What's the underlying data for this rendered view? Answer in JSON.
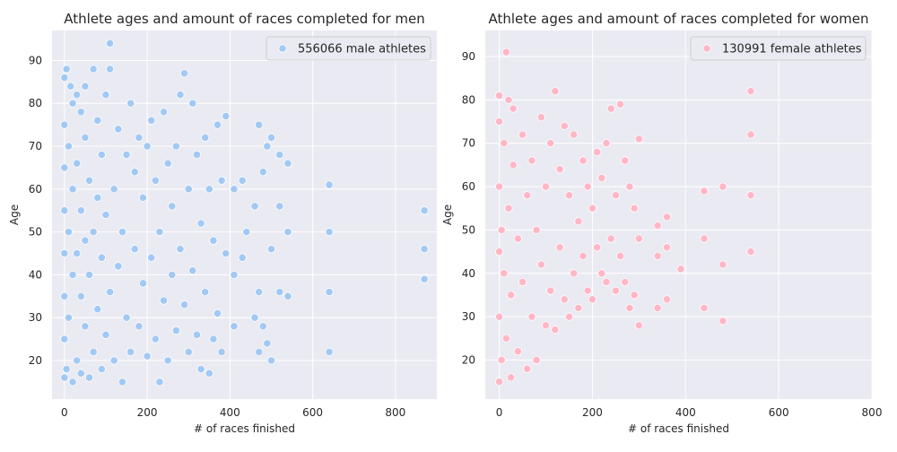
{
  "chart_data": [
    {
      "type": "scatter",
      "title": "Athlete ages and amount of races completed for men",
      "xlabel": "# of races finished",
      "ylabel": "Age",
      "xlim": [
        -30,
        900
      ],
      "ylim": [
        11,
        97
      ],
      "xticks": [
        0,
        200,
        400,
        600,
        800
      ],
      "yticks": [
        20,
        30,
        40,
        50,
        60,
        70,
        80,
        90
      ],
      "grid": true,
      "legend_position": "top-right",
      "color": "#a1c9f4",
      "series": [
        {
          "name": "556066 male athletes",
          "points": [
            [
              0,
              16
            ],
            [
              0,
              25
            ],
            [
              0,
              35
            ],
            [
              0,
              45
            ],
            [
              0,
              55
            ],
            [
              0,
              65
            ],
            [
              0,
              75
            ],
            [
              0,
              86
            ],
            [
              5,
              18
            ],
            [
              5,
              88
            ],
            [
              10,
              30
            ],
            [
              10,
              50
            ],
            [
              10,
              70
            ],
            [
              15,
              84
            ],
            [
              20,
              15
            ],
            [
              20,
              40
            ],
            [
              20,
              60
            ],
            [
              20,
              80
            ],
            [
              30,
              20
            ],
            [
              30,
              45
            ],
            [
              30,
              66
            ],
            [
              30,
              82
            ],
            [
              40,
              17
            ],
            [
              40,
              35
            ],
            [
              40,
              55
            ],
            [
              40,
              78
            ],
            [
              50,
              28
            ],
            [
              50,
              48
            ],
            [
              50,
              72
            ],
            [
              50,
              84
            ],
            [
              60,
              16
            ],
            [
              60,
              40
            ],
            [
              60,
              62
            ],
            [
              70,
              22
            ],
            [
              70,
              50
            ],
            [
              70,
              88
            ],
            [
              80,
              32
            ],
            [
              80,
              58
            ],
            [
              80,
              76
            ],
            [
              90,
              18
            ],
            [
              90,
              44
            ],
            [
              90,
              68
            ],
            [
              100,
              26
            ],
            [
              100,
              54
            ],
            [
              100,
              82
            ],
            [
              110,
              94
            ],
            [
              110,
              36
            ],
            [
              110,
              88
            ],
            [
              120,
              20
            ],
            [
              120,
              60
            ],
            [
              130,
              42
            ],
            [
              130,
              74
            ],
            [
              140,
              15
            ],
            [
              140,
              50
            ],
            [
              150,
              30
            ],
            [
              150,
              68
            ],
            [
              160,
              22
            ],
            [
              160,
              80
            ],
            [
              170,
              46
            ],
            [
              170,
              64
            ],
            [
              180,
              28
            ],
            [
              180,
              72
            ],
            [
              190,
              38
            ],
            [
              190,
              58
            ],
            [
              200,
              21
            ],
            [
              200,
              70
            ],
            [
              210,
              44
            ],
            [
              210,
              76
            ],
            [
              220,
              25
            ],
            [
              220,
              62
            ],
            [
              230,
              15
            ],
            [
              230,
              50
            ],
            [
              240,
              34
            ],
            [
              240,
              78
            ],
            [
              250,
              20
            ],
            [
              250,
              66
            ],
            [
              260,
              40
            ],
            [
              260,
              56
            ],
            [
              270,
              27
            ],
            [
              270,
              70
            ],
            [
              280,
              46
            ],
            [
              280,
              82
            ],
            [
              290,
              87
            ],
            [
              290,
              33
            ],
            [
              300,
              22
            ],
            [
              300,
              60
            ],
            [
              310,
              41
            ],
            [
              310,
              80
            ],
            [
              320,
              26
            ],
            [
              320,
              68
            ],
            [
              330,
              18
            ],
            [
              330,
              52
            ],
            [
              340,
              36
            ],
            [
              340,
              72
            ],
            [
              350,
              17
            ],
            [
              350,
              60
            ],
            [
              360,
              25
            ],
            [
              360,
              48
            ],
            [
              370,
              31
            ],
            [
              370,
              75
            ],
            [
              380,
              22
            ],
            [
              380,
              62
            ],
            [
              390,
              77
            ],
            [
              390,
              45
            ],
            [
              410,
              28
            ],
            [
              410,
              40
            ],
            [
              410,
              60
            ],
            [
              430,
              44
            ],
            [
              430,
              62
            ],
            [
              440,
              50
            ],
            [
              460,
              30
            ],
            [
              460,
              56
            ],
            [
              470,
              22
            ],
            [
              470,
              36
            ],
            [
              470,
              75
            ],
            [
              480,
              28
            ],
            [
              480,
              64
            ],
            [
              490,
              24
            ],
            [
              490,
              70
            ],
            [
              500,
              20
            ],
            [
              500,
              46
            ],
            [
              500,
              72
            ],
            [
              520,
              36
            ],
            [
              520,
              56
            ],
            [
              520,
              68
            ],
            [
              540,
              35
            ],
            [
              540,
              50
            ],
            [
              540,
              66
            ],
            [
              640,
              22
            ],
            [
              640,
              36
            ],
            [
              640,
              50
            ],
            [
              640,
              61
            ],
            [
              870,
              39
            ],
            [
              870,
              46
            ],
            [
              870,
              55
            ]
          ]
        }
      ]
    },
    {
      "type": "scatter",
      "title": "Athlete ages and amount of races completed for women",
      "xlabel": "# of races finished",
      "ylabel": "Age",
      "xlim": [
        -30,
        800
      ],
      "ylim": [
        11,
        96
      ],
      "xticks": [
        0,
        200,
        400,
        600,
        800
      ],
      "yticks": [
        20,
        30,
        40,
        50,
        60,
        70,
        80,
        90
      ],
      "grid": true,
      "legend_position": "top-right",
      "color": "#ffb7c5",
      "series": [
        {
          "name": "130991 female athletes",
          "points": [
            [
              0,
              15
            ],
            [
              0,
              30
            ],
            [
              0,
              45
            ],
            [
              0,
              60
            ],
            [
              0,
              75
            ],
            [
              0,
              81
            ],
            [
              5,
              20
            ],
            [
              5,
              50
            ],
            [
              10,
              40
            ],
            [
              10,
              70
            ],
            [
              15,
              91
            ],
            [
              15,
              25
            ],
            [
              20,
              55
            ],
            [
              20,
              80
            ],
            [
              25,
              16
            ],
            [
              25,
              35
            ],
            [
              30,
              65
            ],
            [
              30,
              78
            ],
            [
              40,
              22
            ],
            [
              40,
              48
            ],
            [
              50,
              38
            ],
            [
              50,
              72
            ],
            [
              60,
              18
            ],
            [
              60,
              58
            ],
            [
              70,
              30
            ],
            [
              70,
              66
            ],
            [
              80,
              20
            ],
            [
              80,
              50
            ],
            [
              90,
              42
            ],
            [
              90,
              76
            ],
            [
              100,
              28
            ],
            [
              100,
              60
            ],
            [
              110,
              36
            ],
            [
              110,
              70
            ],
            [
              120,
              27
            ],
            [
              120,
              82
            ],
            [
              130,
              46
            ],
            [
              130,
              64
            ],
            [
              140,
              34
            ],
            [
              140,
              74
            ],
            [
              150,
              30
            ],
            [
              150,
              58
            ],
            [
              160,
              40
            ],
            [
              160,
              72
            ],
            [
              170,
              32
            ],
            [
              170,
              52
            ],
            [
              180,
              44
            ],
            [
              180,
              66
            ],
            [
              190,
              36
            ],
            [
              190,
              60
            ],
            [
              200,
              34
            ],
            [
              200,
              55
            ],
            [
              210,
              46
            ],
            [
              210,
              68
            ],
            [
              220,
              40
            ],
            [
              220,
              62
            ],
            [
              230,
              38
            ],
            [
              230,
              70
            ],
            [
              240,
              48
            ],
            [
              240,
              78
            ],
            [
              250,
              36
            ],
            [
              250,
              58
            ],
            [
              260,
              44
            ],
            [
              260,
              79
            ],
            [
              270,
              38
            ],
            [
              270,
              66
            ],
            [
              280,
              32
            ],
            [
              280,
              60
            ],
            [
              290,
              35
            ],
            [
              290,
              55
            ],
            [
              300,
              28
            ],
            [
              300,
              48
            ],
            [
              300,
              71
            ],
            [
              340,
              32
            ],
            [
              340,
              44
            ],
            [
              340,
              51
            ],
            [
              360,
              34
            ],
            [
              360,
              46
            ],
            [
              360,
              53
            ],
            [
              390,
              41
            ],
            [
              440,
              32
            ],
            [
              440,
              48
            ],
            [
              440,
              59
            ],
            [
              480,
              29
            ],
            [
              480,
              42
            ],
            [
              480,
              60
            ],
            [
              540,
              45
            ],
            [
              540,
              58
            ],
            [
              540,
              72
            ],
            [
              540,
              82
            ]
          ]
        }
      ]
    }
  ]
}
